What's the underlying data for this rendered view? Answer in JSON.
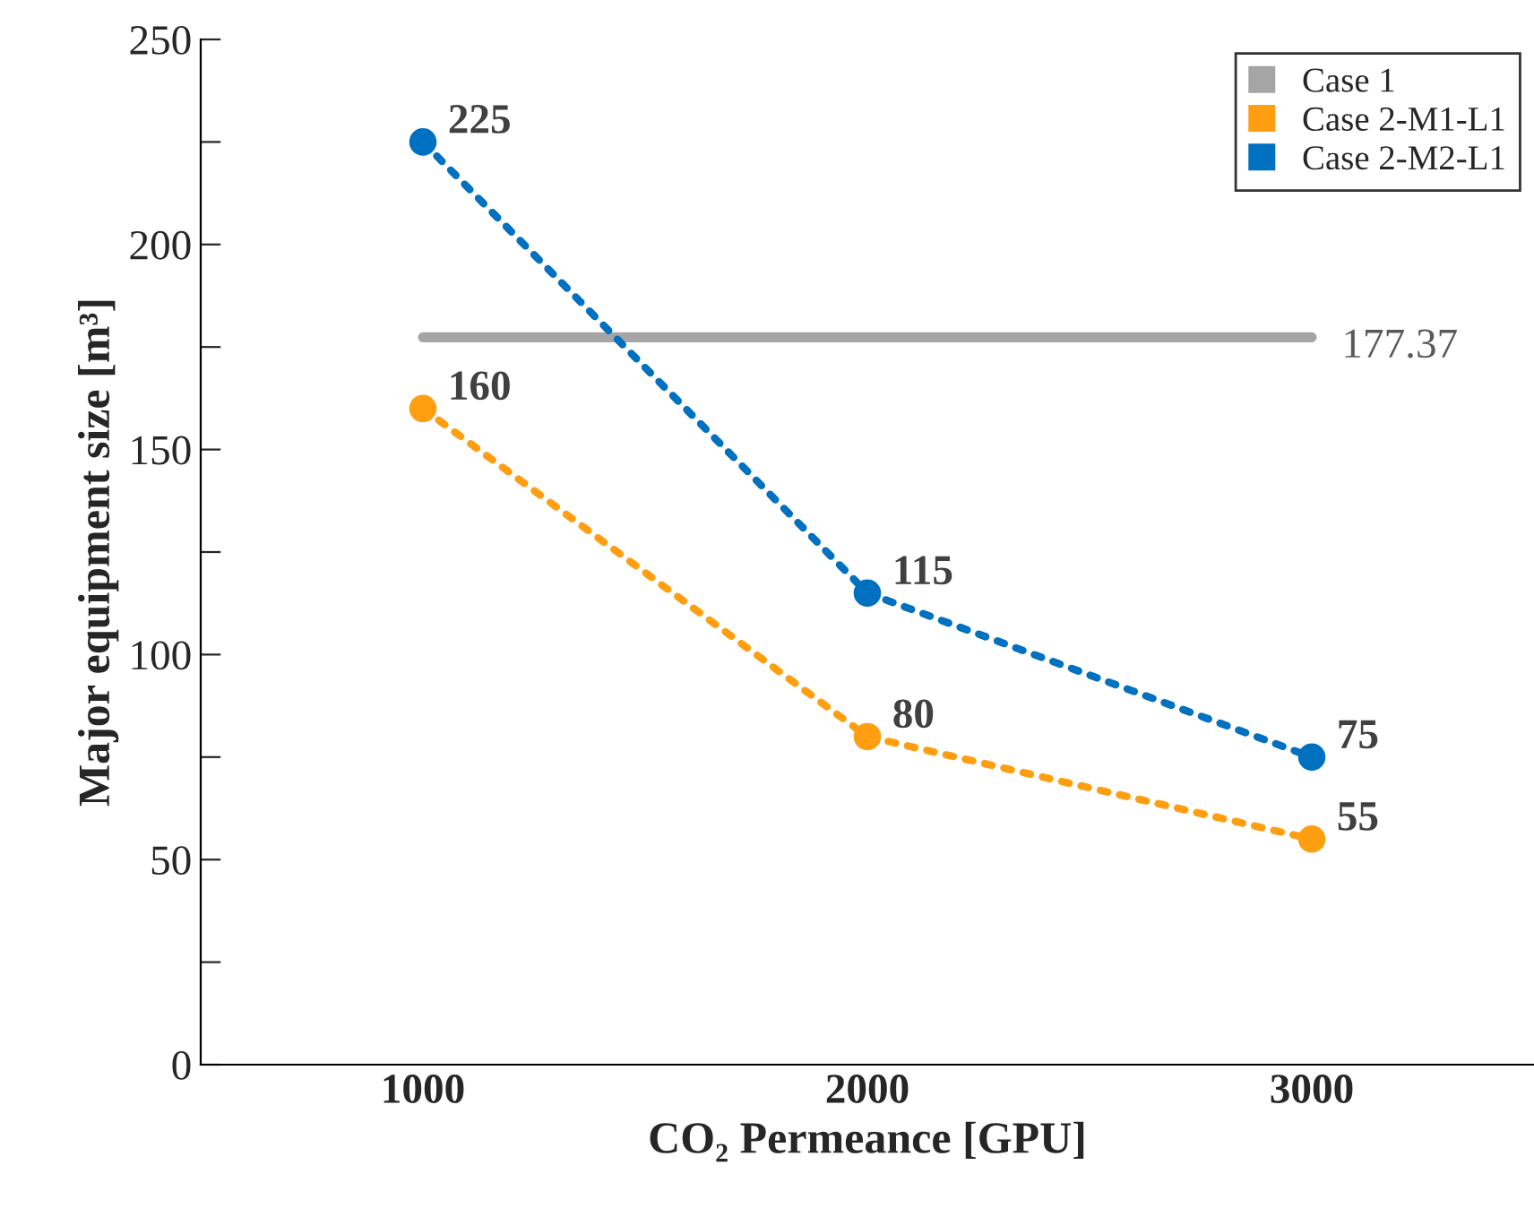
{
  "chart_data": {
    "type": "line",
    "xlabel": "CO₂ Permeance [GPU]",
    "ylabel": "Major equipment size [m³]",
    "xlim": [
      500,
      3500
    ],
    "xticks": [
      1000,
      2000,
      3000
    ],
    "ylim": [
      0,
      250
    ],
    "yticks": [
      0,
      {
        "value": 25,
        "label": null
      },
      50,
      {
        "value": 75,
        "label": null
      },
      100,
      {
        "value": 125,
        "label": null
      },
      150,
      {
        "value": 175,
        "label": null
      },
      200,
      {
        "value": 225,
        "label": null
      },
      250
    ],
    "grid": false,
    "legend": "top right",
    "series": [
      {
        "name": "Case 1",
        "color": "#a5a5a5",
        "x": [
          1000,
          3000
        ],
        "values": [
          177.37,
          177.37
        ],
        "line_style": "solid",
        "marker": "none",
        "value_labels": [
          null,
          "177.37"
        ]
      },
      {
        "name": "Case 2-M1-L1",
        "color": "#ff9e10",
        "x": [
          1000,
          2000,
          3000
        ],
        "values": [
          160,
          80,
          55
        ],
        "line_style": "dotted",
        "marker": "circle",
        "value_labels": [
          "160",
          "80",
          "55"
        ]
      },
      {
        "name": "Case 2-M2-L1",
        "color": "#0070c0",
        "x": [
          1000,
          2000,
          3000
        ],
        "values": [
          225,
          115,
          75
        ],
        "line_style": "dotted",
        "marker": "circle",
        "value_labels": [
          "225",
          "115",
          "75"
        ]
      }
    ]
  }
}
